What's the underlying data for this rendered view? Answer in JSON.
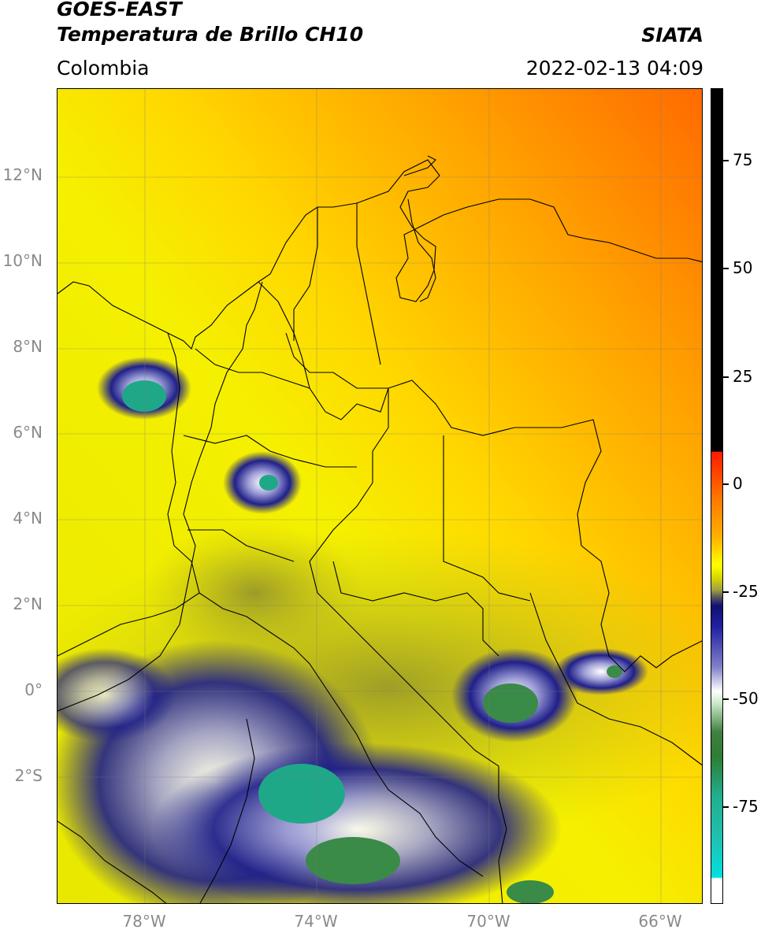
{
  "header": {
    "satellite": "GOES-EAST",
    "product": "Temperatura de Brillo CH10",
    "region": "Colombia",
    "source": "SIATA",
    "datetime": "2022-02-13 04:09"
  },
  "map": {
    "lat_labels": [
      "12°N",
      "10°N",
      "8°N",
      "6°N",
      "4°N",
      "2°N",
      "0°",
      "2°S"
    ],
    "lon_labels": [
      "78°W",
      "74°W",
      "70°W",
      "66°W"
    ]
  },
  "colorbar": {
    "labels": [
      "75",
      "50",
      "25",
      "0",
      "-25",
      "-50",
      "-75"
    ],
    "colors": {
      "black": "#000000",
      "red": "#ff1a00",
      "orange": "#ff8c00",
      "yellow": "#ffff00",
      "olive": "#b0b020",
      "navy": "#101070",
      "white": "#ffffff",
      "green": "#2e7d32",
      "teal": "#20b090",
      "cyan": "#00e0e0"
    }
  }
}
